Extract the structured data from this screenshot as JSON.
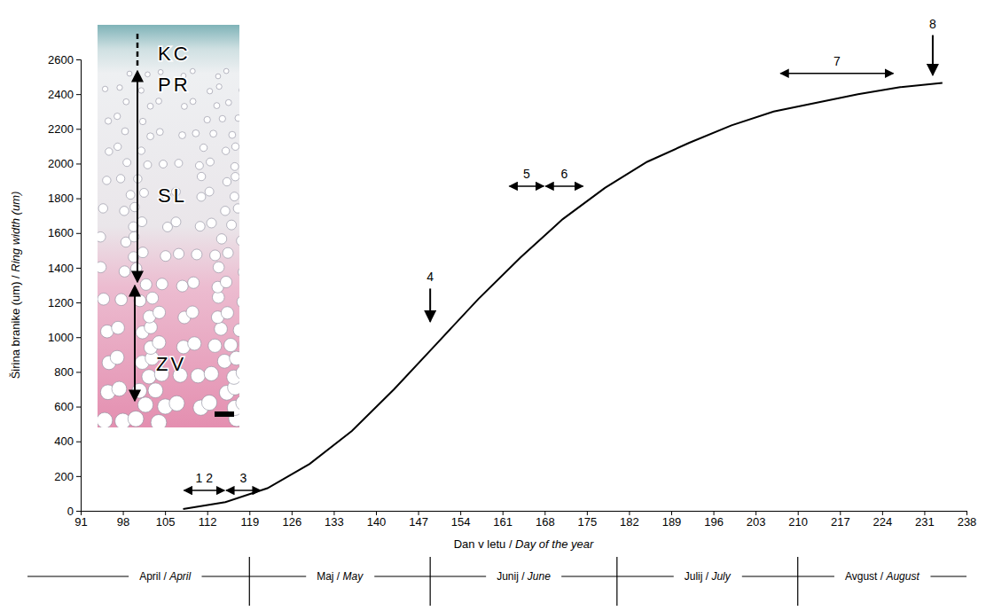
{
  "chart_data": {
    "type": "line",
    "xlabel": "Dan v letu / Day of the year",
    "ylabel": "Širina branike (um) / Ring width (um)",
    "x": [
      108,
      115,
      122,
      129,
      136,
      143,
      150,
      157,
      164,
      171,
      178,
      185,
      192,
      199,
      206,
      213,
      220,
      227,
      234
    ],
    "values": [
      10,
      50,
      130,
      270,
      460,
      700,
      960,
      1220,
      1460,
      1680,
      1860,
      2010,
      2120,
      2220,
      2300,
      2350,
      2400,
      2440,
      2465
    ],
    "color": "#000000",
    "xlim": [
      91,
      238
    ],
    "xticks": [
      91,
      98,
      105,
      112,
      119,
      126,
      133,
      140,
      147,
      154,
      161,
      168,
      175,
      182,
      189,
      196,
      203,
      210,
      217,
      224,
      231,
      238
    ],
    "ylim": [
      0,
      2600
    ],
    "yticks": [
      0,
      200,
      400,
      600,
      800,
      1000,
      1200,
      1400,
      1600,
      1800,
      2000,
      2200,
      2400,
      2600
    ],
    "grid": false,
    "annotations": [
      {
        "text": "1 2",
        "x": [
          108,
          115
        ],
        "y": 117
      },
      {
        "text": "3",
        "x": [
          115,
          121
        ],
        "y": 117
      },
      {
        "text": "4",
        "x": 149,
        "y": [
          1280,
          1090
        ]
      },
      {
        "text": "5",
        "x": [
          162,
          168
        ],
        "y": 1870
      },
      {
        "text": "6",
        "x": [
          168,
          174.5
        ],
        "y": 1870
      },
      {
        "text": "7",
        "x": [
          207,
          226
        ],
        "y": 2520
      },
      {
        "text": "8",
        "x": 232.4,
        "y": [
          2740,
          2510
        ]
      }
    ],
    "months": [
      {
        "label": "April / April",
        "start": 91,
        "end": 119
      },
      {
        "label": "Maj / May",
        "start": 119,
        "end": 149
      },
      {
        "label": "Junij / June",
        "start": 149,
        "end": 180
      },
      {
        "label": "Julij / July",
        "start": 180,
        "end": 210
      },
      {
        "label": "Avgust / August",
        "start": 210,
        "end": 238
      }
    ],
    "inset": {
      "labels": [
        "KC",
        "PR",
        "SL",
        "ZV"
      ]
    }
  }
}
